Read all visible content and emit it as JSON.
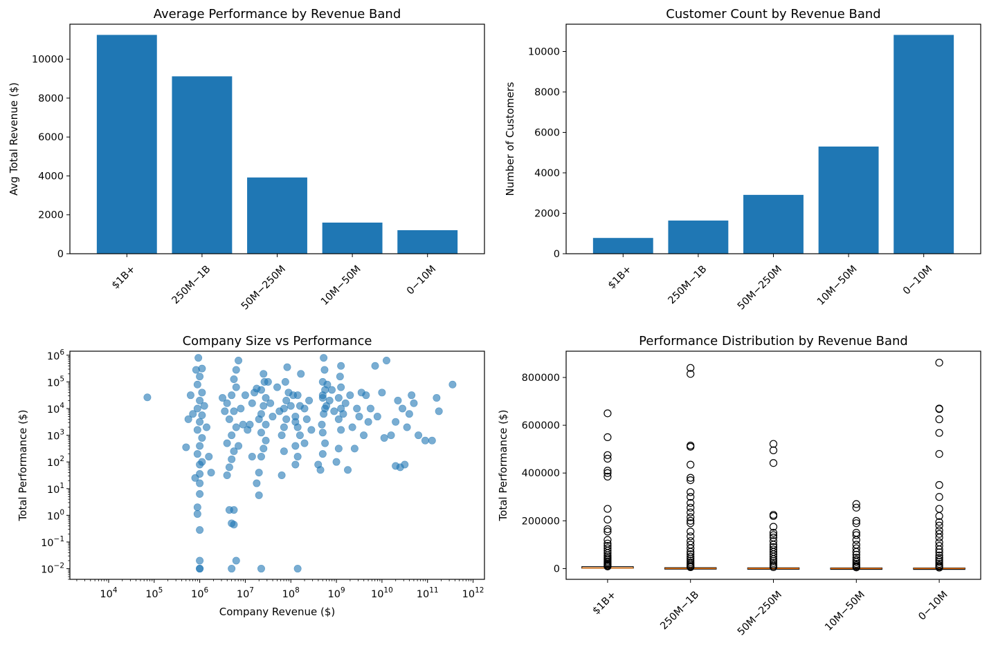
{
  "chart_data": [
    {
      "type": "bar",
      "title": "Average Performance by Revenue Band",
      "xlabel": "",
      "ylabel": "Avg Total Revenue ($)",
      "categories": [
        "$1B+",
        "250M−1B",
        "50M−250M",
        "10M−50M",
        "0−10M"
      ],
      "values": [
        11250,
        9120,
        3920,
        1600,
        1210
      ],
      "ylim": [
        0,
        11800
      ],
      "yticks": [
        0,
        2000,
        4000,
        6000,
        8000,
        10000
      ],
      "grid": false,
      "color": "#1f77b4"
    },
    {
      "type": "bar",
      "title": "Customer Count by Revenue Band",
      "xlabel": "",
      "ylabel": "Number of Customers",
      "categories": [
        "$1B+",
        "250M−1B",
        "50M−250M",
        "10M−50M",
        "0−10M"
      ],
      "values": [
        780,
        1640,
        2910,
        5300,
        10820
      ],
      "ylim": [
        0,
        11350
      ],
      "yticks": [
        0,
        2000,
        4000,
        6000,
        8000,
        10000
      ],
      "grid": false,
      "color": "#1f77b4"
    },
    {
      "type": "scatter",
      "title": "Company Size vs Performance",
      "xlabel": "Company Revenue ($)",
      "ylabel": "Total Performance ($)",
      "xscale": "log",
      "yscale": "log",
      "xlim_exp": [
        3.15,
        12.25
      ],
      "ylim_exp": [
        -2.4,
        6.15
      ],
      "xtick_exps": [
        4,
        5,
        6,
        7,
        8,
        9,
        10,
        11,
        12
      ],
      "ytick_exps": [
        -2,
        -1,
        0,
        1,
        2,
        3,
        4,
        5,
        6
      ],
      "grid": false,
      "color": "#1f77b4",
      "points_log10": [
        [
          4.85,
          4.42
        ],
        [
          6.0,
          -2.0
        ],
        [
          6.0,
          -2.0
        ],
        [
          6.0,
          -1.7
        ],
        [
          6.0,
          -0.55
        ],
        [
          5.95,
          0.3
        ],
        [
          5.95,
          0.05
        ],
        [
          6.0,
          0.8
        ],
        [
          6.0,
          1.2
        ],
        [
          6.0,
          1.55
        ],
        [
          5.9,
          1.4
        ],
        [
          6.0,
          1.9
        ],
        [
          6.05,
          2.0
        ],
        [
          5.95,
          2.3
        ],
        [
          6.0,
          2.6
        ],
        [
          6.05,
          2.9
        ],
        [
          5.95,
          3.2
        ],
        [
          6.0,
          3.5
        ],
        [
          6.05,
          3.75
        ],
        [
          5.95,
          4.0
        ],
        [
          6.0,
          4.3
        ],
        [
          6.05,
          4.6
        ],
        [
          5.95,
          4.9
        ],
        [
          6.0,
          5.2
        ],
        [
          6.05,
          5.5
        ],
        [
          5.97,
          5.9
        ],
        [
          5.92,
          5.45
        ],
        [
          6.1,
          4.1
        ],
        [
          6.15,
          3.3
        ],
        [
          5.85,
          3.8
        ],
        [
          5.8,
          4.5
        ],
        [
          5.75,
          3.6
        ],
        [
          6.2,
          2.2
        ],
        [
          6.25,
          1.6
        ],
        [
          5.7,
          2.55
        ],
        [
          6.65,
          0.2
        ],
        [
          6.75,
          0.2
        ],
        [
          6.7,
          -0.3
        ],
        [
          6.75,
          -0.35
        ],
        [
          6.8,
          -1.7
        ],
        [
          6.7,
          -2.0
        ],
        [
          6.6,
          1.5
        ],
        [
          6.65,
          1.8
        ],
        [
          6.7,
          2.1
        ],
        [
          6.75,
          2.4
        ],
        [
          6.6,
          2.7
        ],
        [
          6.7,
          3.0
        ],
        [
          6.8,
          3.3
        ],
        [
          6.65,
          3.6
        ],
        [
          6.75,
          3.9
        ],
        [
          6.6,
          4.2
        ],
        [
          6.7,
          4.5
        ],
        [
          6.8,
          4.8
        ],
        [
          6.75,
          5.1
        ],
        [
          6.8,
          5.45
        ],
        [
          6.85,
          5.8
        ],
        [
          6.9,
          4.0
        ],
        [
          6.95,
          3.4
        ],
        [
          6.55,
          3.9
        ],
        [
          6.5,
          4.4
        ],
        [
          6.85,
          2.6
        ],
        [
          7.0,
          4.5
        ],
        [
          7.05,
          3.2
        ],
        [
          7.2,
          4.6
        ],
        [
          7.25,
          4.75
        ],
        [
          7.15,
          4.2
        ],
        [
          7.3,
          3.6
        ],
        [
          7.25,
          1.2
        ],
        [
          7.3,
          0.75
        ],
        [
          7.35,
          -2.0
        ],
        [
          7.3,
          1.6
        ],
        [
          7.35,
          2.2
        ],
        [
          7.4,
          2.5
        ],
        [
          7.45,
          2.8
        ],
        [
          7.35,
          3.1
        ],
        [
          7.45,
          3.4
        ],
        [
          7.35,
          3.8
        ],
        [
          7.4,
          4.1
        ],
        [
          7.45,
          4.4
        ],
        [
          7.35,
          4.7
        ],
        [
          7.42,
          5.0
        ],
        [
          7.4,
          5.3
        ],
        [
          7.5,
          5.0
        ],
        [
          7.55,
          4.2
        ],
        [
          7.6,
          3.7
        ],
        [
          7.1,
          3.4
        ],
        [
          7.15,
          2.2
        ],
        [
          7.7,
          4.8
        ],
        [
          7.75,
          3.9
        ],
        [
          7.8,
          1.5
        ],
        [
          7.85,
          2.4
        ],
        [
          7.8,
          3.0
        ],
        [
          7.85,
          3.3
        ],
        [
          7.9,
          3.6
        ],
        [
          7.85,
          4.0
        ],
        [
          7.9,
          4.3
        ],
        [
          7.95,
          4.6
        ],
        [
          7.88,
          5.0
        ],
        [
          7.92,
          5.55
        ],
        [
          8.0,
          4.1
        ],
        [
          8.05,
          4.5
        ],
        [
          8.1,
          3.5
        ],
        [
          8.15,
          -2.0
        ],
        [
          8.1,
          1.9
        ],
        [
          8.15,
          2.2
        ],
        [
          8.1,
          2.6
        ],
        [
          8.2,
          3.0
        ],
        [
          8.15,
          3.3
        ],
        [
          8.1,
          3.7
        ],
        [
          8.2,
          4.1
        ],
        [
          8.15,
          4.5
        ],
        [
          8.22,
          5.3
        ],
        [
          8.3,
          4.0
        ],
        [
          8.35,
          3.6
        ],
        [
          8.4,
          4.3
        ],
        [
          8.45,
          3.2
        ],
        [
          8.3,
          2.7
        ],
        [
          8.7,
          4.5
        ],
        [
          8.75,
          4.0
        ],
        [
          8.6,
          1.9
        ],
        [
          8.65,
          1.7
        ],
        [
          8.7,
          2.3
        ],
        [
          8.75,
          2.7
        ],
        [
          8.7,
          3.1
        ],
        [
          8.68,
          3.4
        ],
        [
          8.72,
          3.8
        ],
        [
          8.78,
          4.1
        ],
        [
          8.7,
          4.4
        ],
        [
          8.75,
          4.7
        ],
        [
          8.7,
          5.0
        ],
        [
          8.74,
          5.45
        ],
        [
          8.72,
          5.9
        ],
        [
          8.8,
          4.9
        ],
        [
          8.85,
          4.3
        ],
        [
          8.9,
          4.7
        ],
        [
          8.95,
          3.9
        ],
        [
          9.0,
          2.0
        ],
        [
          9.05,
          2.5
        ],
        [
          9.1,
          3.2
        ],
        [
          9.05,
          3.6
        ],
        [
          9.1,
          4.0
        ],
        [
          9.05,
          4.4
        ],
        [
          9.1,
          4.8
        ],
        [
          9.08,
          5.2
        ],
        [
          9.1,
          5.6
        ],
        [
          9.15,
          3.8
        ],
        [
          9.2,
          4.2
        ],
        [
          9.25,
          1.7
        ],
        [
          9.3,
          4.5
        ],
        [
          9.35,
          3.3
        ],
        [
          9.4,
          2.5
        ],
        [
          9.45,
          4.0
        ],
        [
          9.5,
          3.7
        ],
        [
          9.55,
          4.6
        ],
        [
          9.6,
          3.0
        ],
        [
          9.65,
          4.5
        ],
        [
          9.7,
          3.5
        ],
        [
          9.75,
          4.0
        ],
        [
          9.85,
          5.6
        ],
        [
          9.9,
          3.7
        ],
        [
          10.0,
          4.6
        ],
        [
          10.05,
          2.9
        ],
        [
          10.1,
          5.8
        ],
        [
          10.2,
          3.0
        ],
        [
          10.3,
          3.5
        ],
        [
          10.35,
          4.3
        ],
        [
          10.3,
          1.85
        ],
        [
          10.4,
          1.8
        ],
        [
          10.5,
          1.9
        ],
        [
          10.45,
          4.0
        ],
        [
          10.55,
          3.3
        ],
        [
          10.6,
          3.8
        ],
        [
          10.65,
          4.5
        ],
        [
          10.7,
          4.2
        ],
        [
          10.8,
          3.0
        ],
        [
          10.95,
          2.8
        ],
        [
          11.1,
          2.8
        ],
        [
          11.2,
          4.4
        ],
        [
          11.55,
          4.9
        ],
        [
          11.25,
          3.9
        ]
      ]
    },
    {
      "type": "box",
      "title": "Performance Distribution by Revenue Band",
      "xlabel": "",
      "ylabel": "Total Performance ($)",
      "categories": [
        "$1B+",
        "250M−1B",
        "50M−250M",
        "10M−50M",
        "0−10M"
      ],
      "ylim": [
        -45000,
        910000
      ],
      "yticks": [
        0,
        200000,
        400000,
        600000,
        800000
      ],
      "grid": false,
      "median_color": "#ff7f0e",
      "boxes": [
        {
          "q1": 300,
          "median": 2500,
          "q3": 6500,
          "fliers": [
            650000,
            550000,
            475000,
            460000,
            410000,
            400000,
            385000,
            250000,
            205000,
            165000,
            155000,
            120000,
            105000,
            95000,
            85000,
            75000,
            65000,
            55000,
            48000,
            42000,
            36000,
            30000,
            25000,
            20000,
            16000,
            12000,
            9000
          ]
        },
        {
          "q1": 100,
          "median": 900,
          "q3": 2200,
          "fliers": [
            840000,
            815000,
            515000,
            510000,
            435000,
            380000,
            370000,
            320000,
            300000,
            275000,
            255000,
            235000,
            215000,
            200000,
            190000,
            155000,
            135000,
            115000,
            100000,
            85000,
            70000,
            60000,
            50000,
            42000,
            34000,
            26000,
            20000,
            14000,
            9000,
            6000
          ]
        },
        {
          "q1": 80,
          "median": 600,
          "q3": 1700,
          "fliers": [
            522000,
            495000,
            442000,
            225000,
            220000,
            175000,
            150000,
            140000,
            130000,
            115000,
            100000,
            90000,
            80000,
            70000,
            60000,
            50000,
            40000,
            32000,
            24000,
            17000,
            11000,
            6000
          ]
        },
        {
          "q1": 60,
          "median": 400,
          "q3": 1200,
          "fliers": [
            270000,
            255000,
            200000,
            190000,
            150000,
            140000,
            120000,
            100000,
            85000,
            70000,
            58000,
            46000,
            36000,
            28000,
            20000,
            14000,
            9000,
            5000
          ]
        },
        {
          "q1": 50,
          "median": 350,
          "q3": 1000,
          "fliers": [
            862000,
            670000,
            668000,
            625000,
            568000,
            480000,
            350000,
            300000,
            250000,
            220000,
            195000,
            180000,
            160000,
            145000,
            130000,
            110000,
            95000,
            80000,
            68000,
            55000,
            45000,
            36000,
            28000,
            20000,
            13000,
            8000,
            4000
          ]
        }
      ]
    }
  ]
}
